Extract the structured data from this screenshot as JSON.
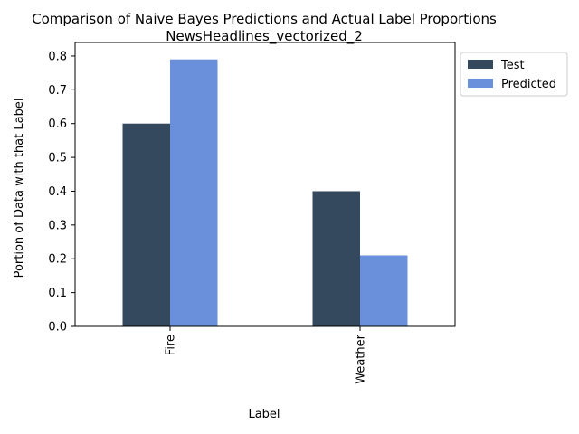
{
  "chart_data": {
    "type": "bar",
    "title": "Comparison of Naive Bayes Predictions and Actual Label Proportions",
    "subtitle": "NewsHeadlines_vectorized_2",
    "xlabel": "Label",
    "ylabel": "Portion of Data with that Label",
    "categories": [
      "Fire",
      "Weather"
    ],
    "series": [
      {
        "name": "Test",
        "values": [
          0.6,
          0.4
        ],
        "color": "#34495e"
      },
      {
        "name": "Predicted",
        "values": [
          0.79,
          0.21
        ],
        "color": "#6a8fdb"
      }
    ],
    "ylim": [
      0,
      0.84
    ],
    "yticks": [
      "0.0",
      "0.1",
      "0.2",
      "0.3",
      "0.4",
      "0.5",
      "0.6",
      "0.7",
      "0.8"
    ],
    "grid": false,
    "legend_position": "outside top-right"
  }
}
